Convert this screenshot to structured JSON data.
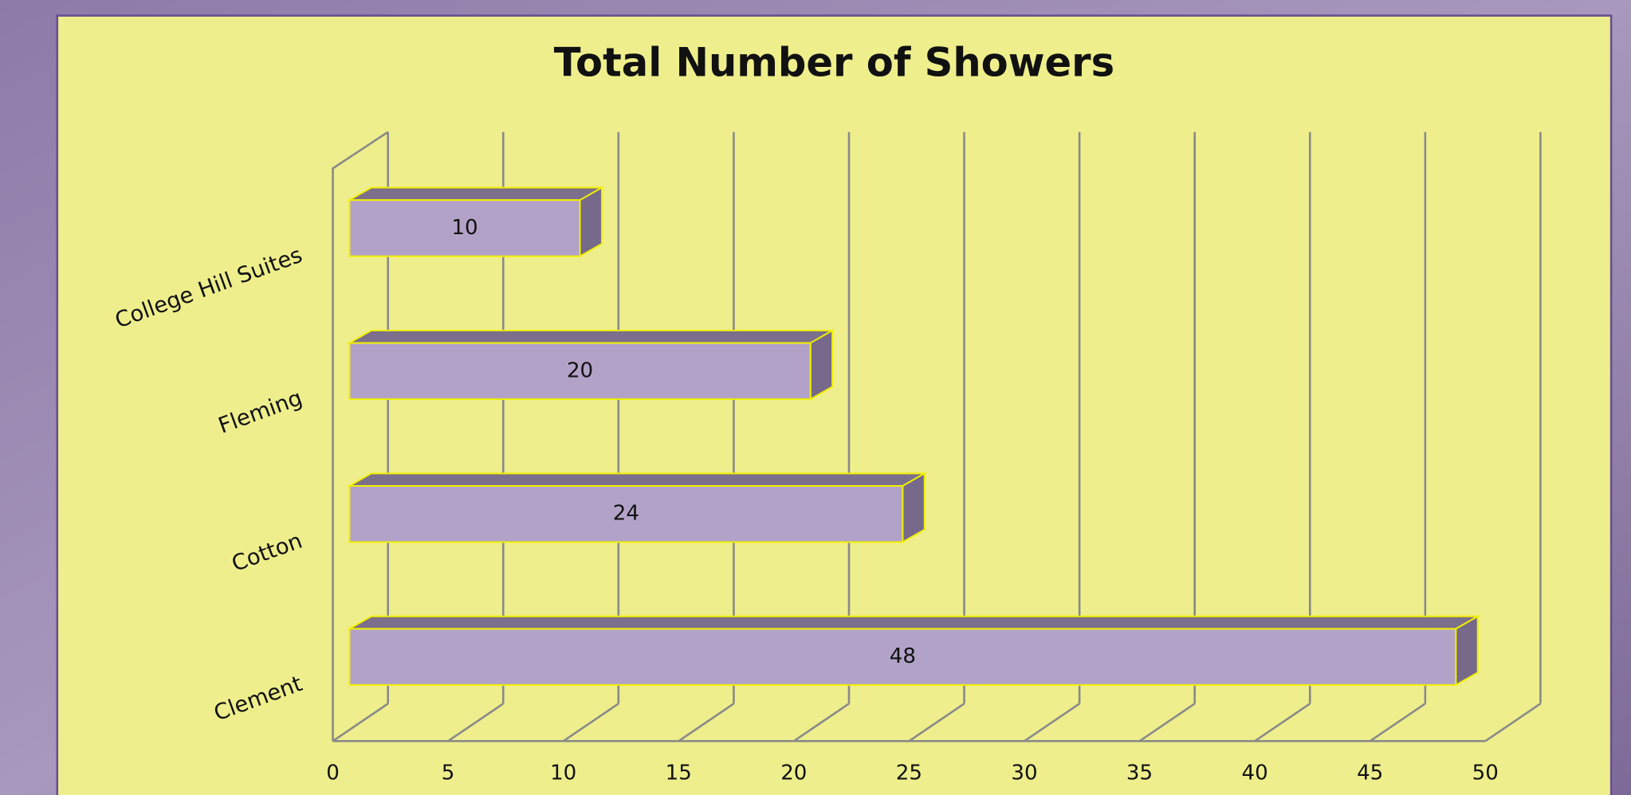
{
  "chart_data": {
    "type": "bar",
    "orientation": "horizontal",
    "title": "Total Number of Showers",
    "categories": [
      "Clement",
      "Cotton",
      "Fleming",
      "College Hill Suites"
    ],
    "values": [
      48,
      24,
      20,
      10
    ],
    "color": "#b3a2c8",
    "xlim": [
      0,
      50
    ],
    "xticks": [
      0,
      5,
      10,
      15,
      20,
      25,
      30,
      35,
      40,
      45,
      50
    ],
    "grid": true
  }
}
